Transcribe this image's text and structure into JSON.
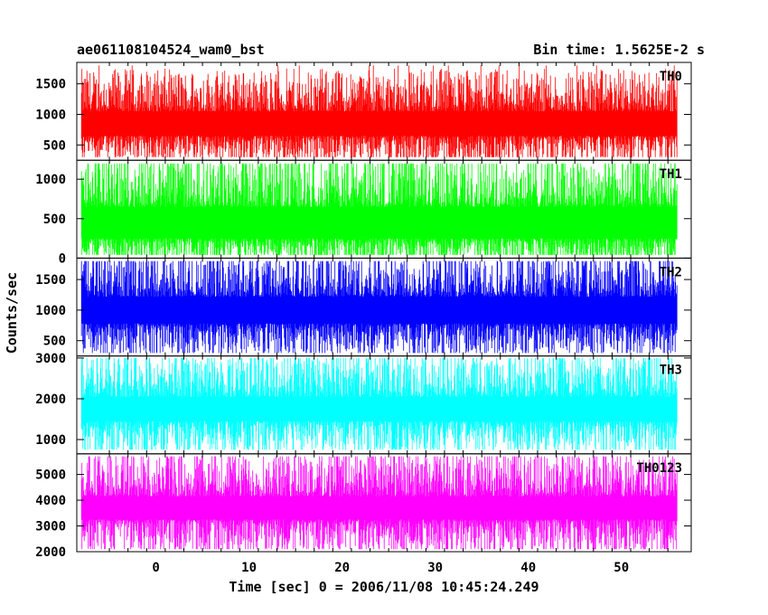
{
  "header": {
    "title": "ae061108104524_wam0_bst",
    "bin_time": "Bin time: 1.5625E-2 s"
  },
  "chart_data": {
    "type": "line",
    "title": "ae061108104524_wam0_bst",
    "subtitle": "Bin time: 1.5625E-2 s",
    "xlabel": "Time [sec] 0 = 2006/11/08 10:45:24.249",
    "ylabel": "Counts/sec",
    "xlim": [
      -8.5,
      57.5
    ],
    "x_range": [
      -8,
      56
    ],
    "x_ticks": [
      0,
      10,
      20,
      30,
      40,
      50
    ],
    "panels": [
      {
        "name": "TH0",
        "color": "#ff0000",
        "ylim": [
          250,
          1850
        ],
        "y_ticks": [
          500,
          1000,
          1500
        ],
        "min": 300,
        "max": 1800,
        "baseline": 850,
        "spread": 200,
        "spike_up": 700,
        "spike_down": 500
      },
      {
        "name": "TH1",
        "color": "#00ff00",
        "ylim": [
          0,
          1240
        ],
        "y_ticks": [
          0,
          500,
          1000
        ],
        "min": 40,
        "max": 1200,
        "baseline": 450,
        "spread": 200,
        "spike_up": 750,
        "spike_down": 400
      },
      {
        "name": "TH2",
        "color": "#0000ff",
        "ylim": [
          250,
          1850
        ],
        "y_ticks": [
          500,
          1000,
          1500
        ],
        "min": 300,
        "max": 1800,
        "baseline": 1000,
        "spread": 220,
        "spike_up": 800,
        "spike_down": 600
      },
      {
        "name": "TH3",
        "color": "#00ffff",
        "ylim": [
          650,
          3050
        ],
        "y_ticks": [
          1000,
          2000,
          3000
        ],
        "min": 750,
        "max": 3000,
        "baseline": 1750,
        "spread": 300,
        "spike_up": 1200,
        "spike_down": 900
      },
      {
        "name": "TH0123",
        "color": "#ff00ff",
        "ylim": [
          2000,
          5800
        ],
        "y_ticks": [
          2000,
          3000,
          4000,
          5000
        ],
        "min": 2100,
        "max": 5700,
        "baseline": 3700,
        "spread": 450,
        "spike_up": 1900,
        "spike_down": 1500
      }
    ]
  }
}
